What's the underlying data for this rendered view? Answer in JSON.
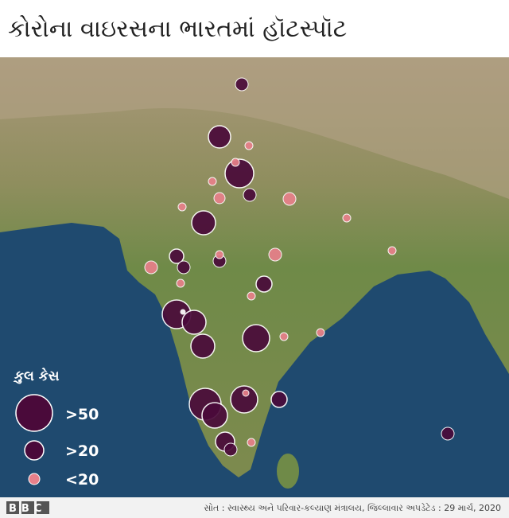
{
  "header": {
    "title": "કોરોના વાઇરસના ભારતમાં હૉટસ્પૉટ"
  },
  "legend": {
    "title": "કુલ કેસ",
    "items": [
      {
        "label": ">50"
      },
      {
        "label": ">20"
      },
      {
        "label": "<20"
      }
    ]
  },
  "footer": {
    "logo": "BBC",
    "source": "સોત : સ્વાસ્થ્ય અને પરિવાર-કલ્યાણ મંત્રાલય, જિલ્લાવાર અપડેટેડ : 29 માર્ચ, 2020"
  }
}
